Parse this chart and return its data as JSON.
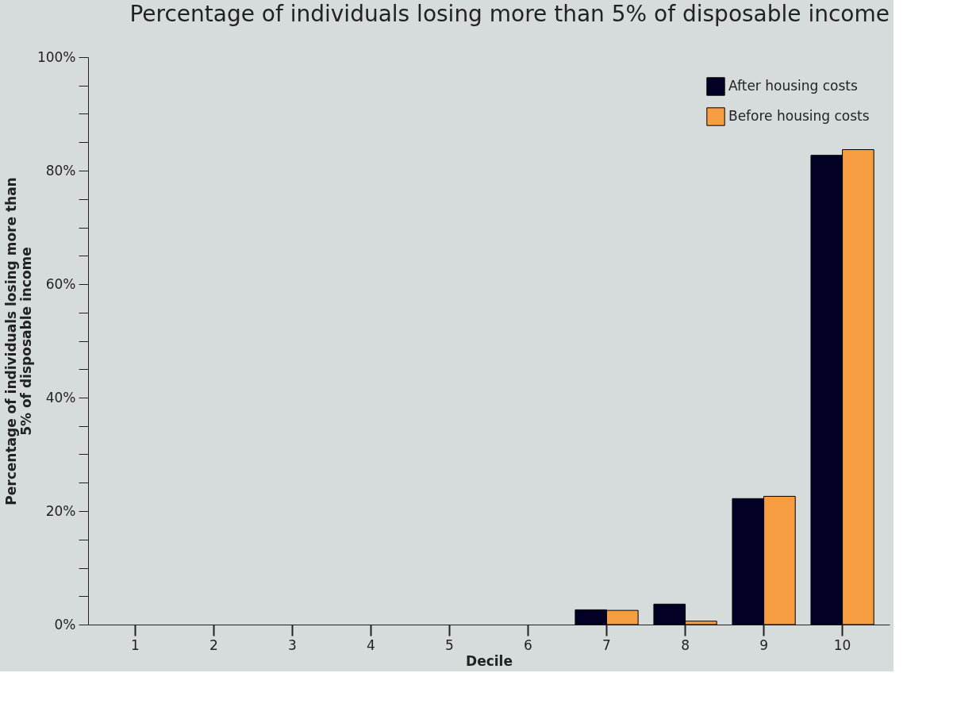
{
  "chart_data": {
    "type": "bar",
    "title": "Percentage of individuals losing more than 5% of disposable income",
    "xlabel": "Decile",
    "ylabel": "Percentage of individuals losing more than 5% of disposable income",
    "categories": [
      "1",
      "2",
      "3",
      "4",
      "5",
      "6",
      "7",
      "8",
      "9",
      "10"
    ],
    "series": [
      {
        "name": "After housing costs",
        "color": "#020024",
        "values": [
          0,
          0,
          0,
          0,
          0,
          0,
          2.6,
          3.6,
          22.2,
          82.7
        ]
      },
      {
        "name": "Before housing costs",
        "color": "#f79d42",
        "values": [
          0,
          0,
          0,
          0,
          0,
          0,
          2.5,
          0.6,
          22.6,
          83.7
        ]
      }
    ],
    "ylim": [
      0,
      100
    ],
    "yticks": [
      {
        "value": 0,
        "label": "0%"
      },
      {
        "value": 5,
        "label": null
      },
      {
        "value": 10,
        "label": null
      },
      {
        "value": 15,
        "label": null
      },
      {
        "value": 20,
        "label": "20%"
      },
      {
        "value": 25,
        "label": null
      },
      {
        "value": 30,
        "label": null
      },
      {
        "value": 35,
        "label": null
      },
      {
        "value": 40,
        "label": "40%"
      },
      {
        "value": 45,
        "label": null
      },
      {
        "value": 50,
        "label": null
      },
      {
        "value": 55,
        "label": null
      },
      {
        "value": 60,
        "label": "60%"
      },
      {
        "value": 65,
        "label": null
      },
      {
        "value": 70,
        "label": null
      },
      {
        "value": 75,
        "label": null
      },
      {
        "value": 80,
        "label": "80%"
      },
      {
        "value": 85,
        "label": null
      },
      {
        "value": 90,
        "label": null
      },
      {
        "value": 95,
        "label": null
      },
      {
        "value": 100,
        "label": "100%"
      }
    ],
    "grid": false,
    "legend": "top right"
  }
}
